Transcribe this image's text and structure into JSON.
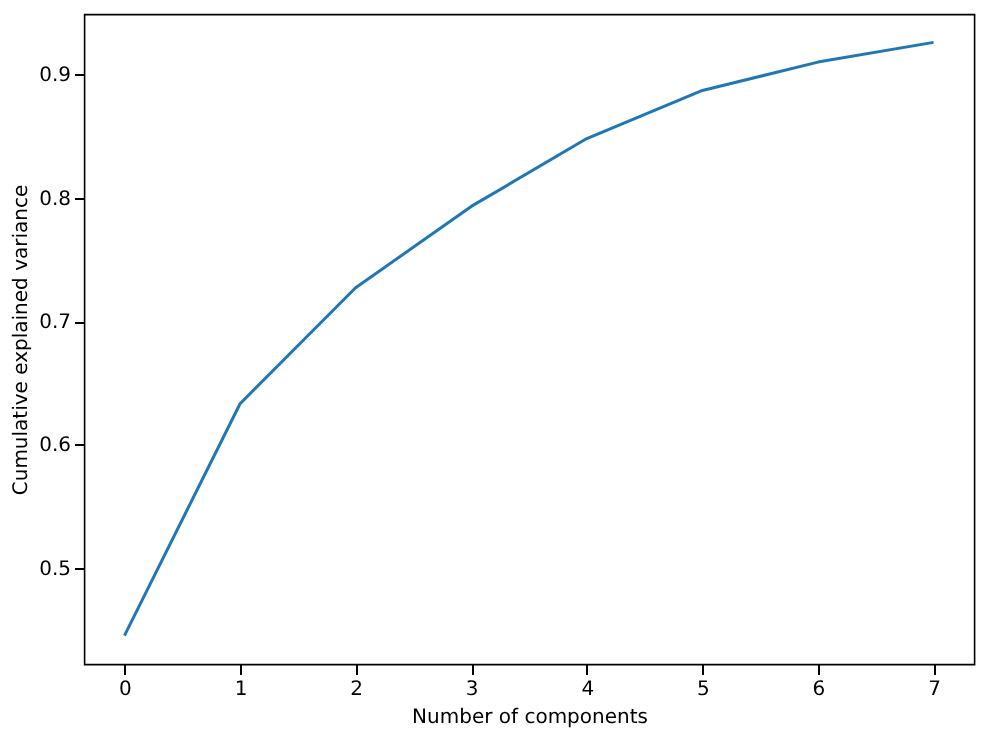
{
  "chart_data": {
    "type": "line",
    "xlabel": "Number of components",
    "ylabel": "Cumulative explained variance",
    "x": [
      0,
      1,
      2,
      3,
      4,
      5,
      6,
      7
    ],
    "series": [
      {
        "color": "#1f77b4",
        "values": [
          0.445,
          0.633,
          0.727,
          0.793,
          0.848,
          0.887,
          0.91,
          0.926
        ]
      }
    ],
    "xlim": [
      -0.35,
      7.35
    ],
    "ylim": [
      0.422,
      0.949
    ],
    "xticks": [
      0,
      1,
      2,
      3,
      4,
      5,
      6,
      7
    ],
    "yticks": [
      0.5,
      0.6,
      0.7,
      0.8,
      0.9
    ],
    "grid": false,
    "legend": false,
    "marker": "none",
    "line_style": "solid"
  }
}
